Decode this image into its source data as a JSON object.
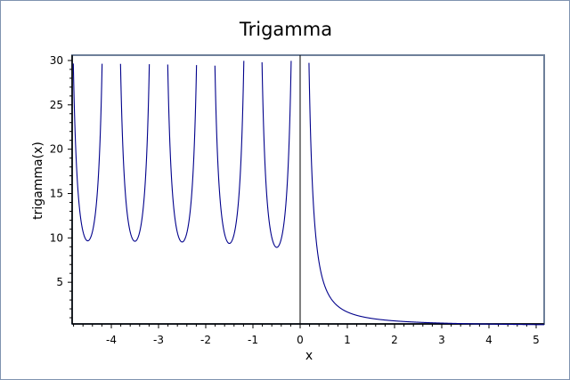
{
  "chart_data": {
    "type": "line",
    "title": "Trigamma",
    "xlabel": "x",
    "ylabel": "trigamma(x)",
    "function": "trigamma",
    "xlim": [
      -4.83,
      5.17
    ],
    "ylim": [
      0.3,
      30.6
    ],
    "xticks": [
      -4,
      -3,
      -2,
      -1,
      0,
      1,
      2,
      3,
      4,
      5
    ],
    "yticks": [
      5,
      10,
      15,
      20,
      25,
      30
    ],
    "grid": false,
    "series_color": "#00008b",
    "local_minima": [
      {
        "x": -4.5,
        "y": 9.67
      },
      {
        "x": -3.5,
        "y": 9.62
      },
      {
        "x": -2.5,
        "y": 9.53
      },
      {
        "x": -1.5,
        "y": 9.37
      },
      {
        "x": -0.5,
        "y": 8.93
      }
    ],
    "sample_points": [
      {
        "x": 0.5,
        "y": 4.93
      },
      {
        "x": 1,
        "y": 1.645
      },
      {
        "x": 2,
        "y": 0.645
      },
      {
        "x": 3,
        "y": 0.395
      },
      {
        "x": 4,
        "y": 0.284
      },
      {
        "x": 5,
        "y": 0.221
      }
    ]
  }
}
